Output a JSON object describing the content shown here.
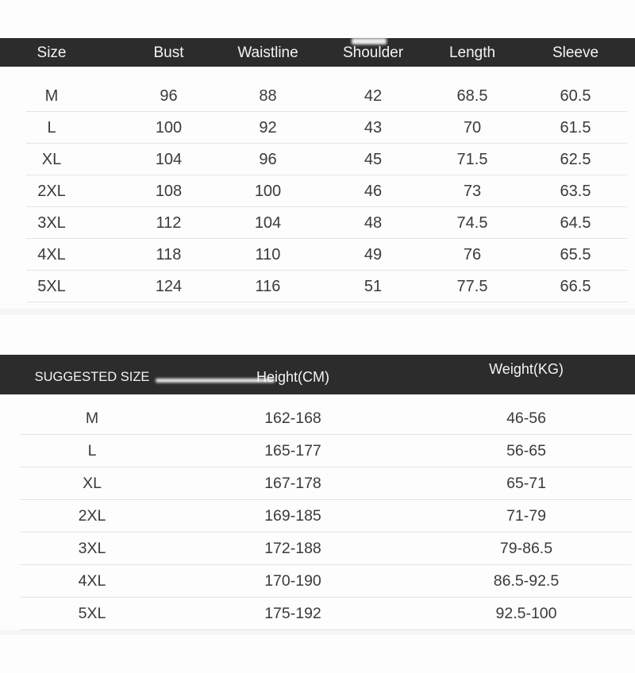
{
  "colors": {
    "page_bg": "#fdfdfd",
    "header_bg": "#2c2c2c",
    "header_text": "#f4f4f4",
    "body_text": "#3a3a3a",
    "divider": "#e4e4e4",
    "band": "#f5f5f5",
    "artifact": "#ececec"
  },
  "size_table": {
    "columns": [
      "Size",
      "Bust",
      "Waistline",
      "Shoulder",
      "Length",
      "Sleeve"
    ],
    "rows": [
      [
        "M",
        "96",
        "88",
        "42",
        "68.5",
        "60.5"
      ],
      [
        "L",
        "100",
        "92",
        "43",
        "70",
        "61.5"
      ],
      [
        "XL",
        "104",
        "96",
        "45",
        "71.5",
        "62.5"
      ],
      [
        "2XL",
        "108",
        "100",
        "46",
        "73",
        "63.5"
      ],
      [
        "3XL",
        "112",
        "104",
        "48",
        "74.5",
        "64.5"
      ],
      [
        "4XL",
        "118",
        "110",
        "49",
        "76",
        "65.5"
      ],
      [
        "5XL",
        "124",
        "116",
        "51",
        "77.5",
        "66.5"
      ]
    ]
  },
  "suggested_table": {
    "columns": [
      "SUGGESTED SIZE",
      "Height(CM)",
      "Weight(KG)"
    ],
    "rows": [
      [
        "M",
        "162-168",
        "46-56"
      ],
      [
        "L",
        "165-177",
        "56-65"
      ],
      [
        "XL",
        "167-178",
        "65-71"
      ],
      [
        "2XL",
        "169-185",
        "71-79"
      ],
      [
        "3XL",
        "172-188",
        "79-86.5"
      ],
      [
        "4XL",
        "170-190",
        "86.5-92.5"
      ],
      [
        "5XL",
        "175-192",
        "92.5-100"
      ]
    ]
  }
}
